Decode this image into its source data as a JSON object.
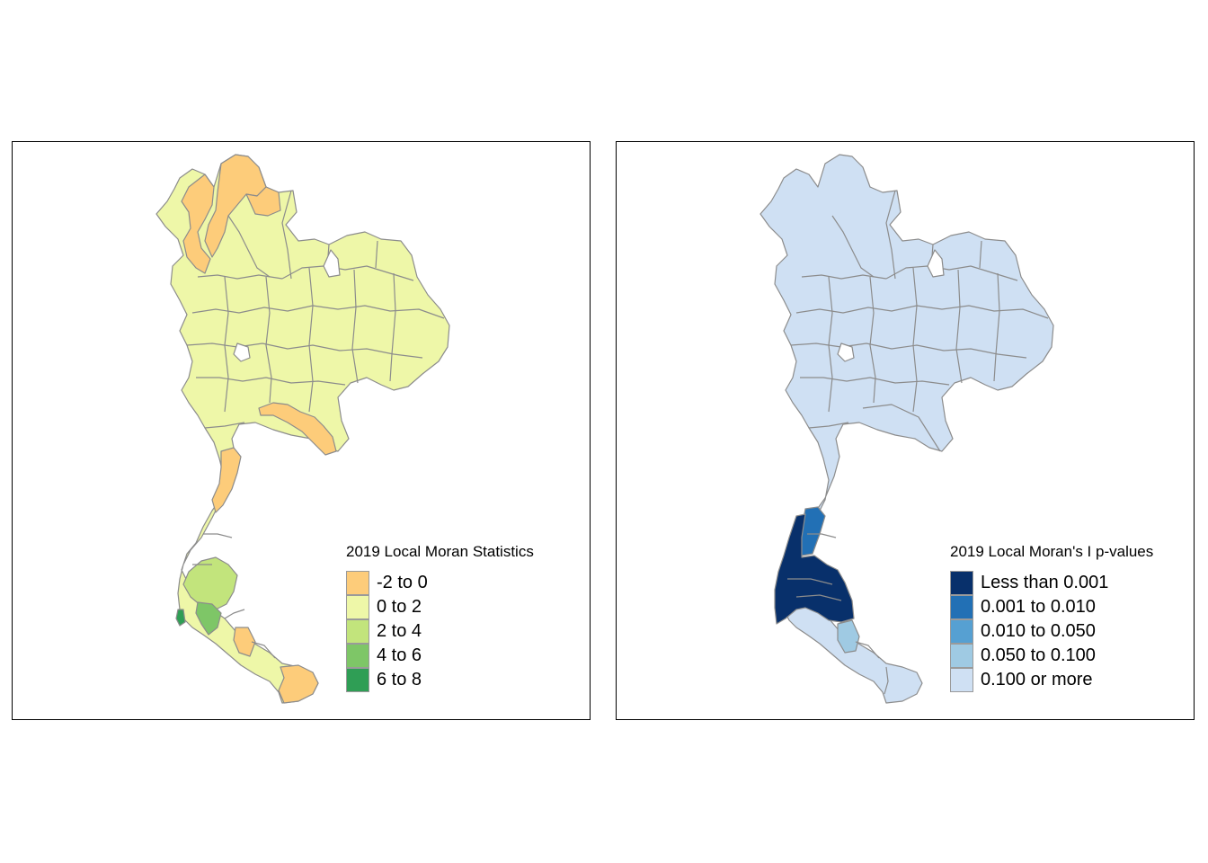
{
  "maps": [
    {
      "id": "local-moran-statistics",
      "legend": {
        "title": "2019 Local Moran Statistics",
        "classes": [
          {
            "label": "-2 to 0",
            "color": "#fdcc7a"
          },
          {
            "label": "0 to 2",
            "color": "#eef7a8"
          },
          {
            "label": "2 to 4",
            "color": "#c2e47c"
          },
          {
            "label": "4 to 6",
            "color": "#7ec667"
          },
          {
            "label": "6 to 8",
            "color": "#2f9e55"
          }
        ]
      }
    },
    {
      "id": "local-moran-p-values",
      "legend": {
        "title": "2019 Local Moran's I p-values",
        "classes": [
          {
            "label": "Less than 0.001",
            "color": "#08306b"
          },
          {
            "label": "0.001 to 0.010",
            "color": "#2270b5"
          },
          {
            "label": "0.010 to 0.050",
            "color": "#56a0d2"
          },
          {
            "label": "0.050 to 0.100",
            "color": "#9fcae3"
          },
          {
            "label": "0.100 or more",
            "color": "#cfe0f3"
          }
        ]
      }
    }
  ],
  "border_color": "#8c8c8c"
}
